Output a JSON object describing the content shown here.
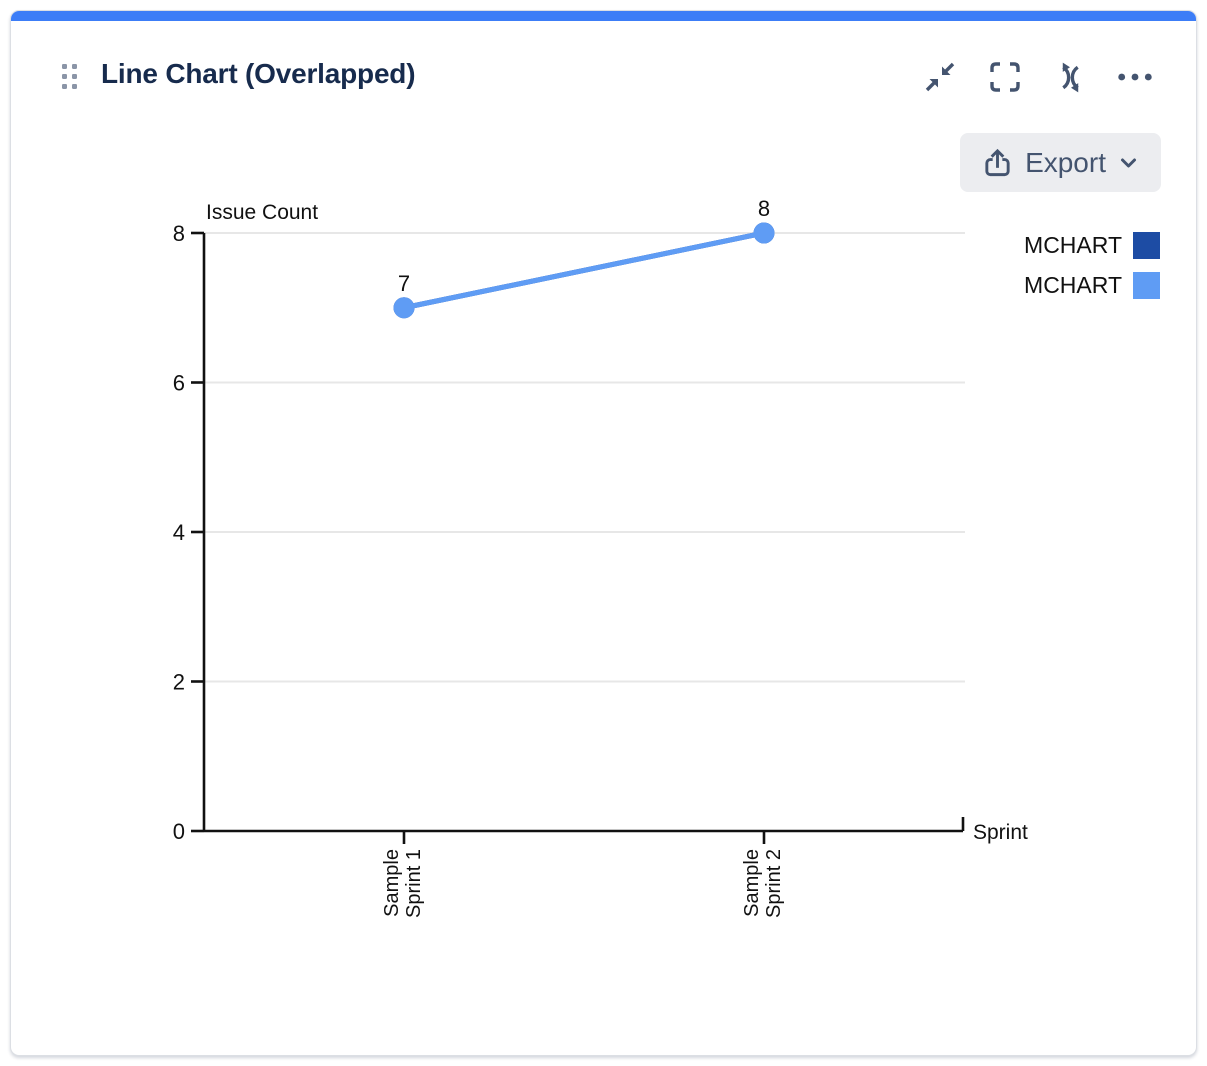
{
  "widget": {
    "title": "Line Chart (Overlapped)",
    "toolbar_icons": [
      "collapse",
      "fullscreen",
      "refresh",
      "more"
    ],
    "export_label": "Export"
  },
  "legend": {
    "position": "right",
    "entries": [
      {
        "label": "MCHART",
        "color": "#1D4CA4"
      },
      {
        "label": "MCHART",
        "color": "#5F9CF4"
      }
    ]
  },
  "chart_data": {
    "type": "line",
    "title": "",
    "categories": [
      "Sample Sprint 1",
      "Sample Sprint 2"
    ],
    "series": [
      {
        "name": "MCHART",
        "color": "#1D4CA4",
        "values": [
          7,
          8
        ]
      },
      {
        "name": "MCHART",
        "color": "#5F9CF4",
        "values": [
          7,
          8
        ]
      }
    ],
    "point_labels": [
      7,
      8
    ],
    "xlabel": "Sprint",
    "ylabel": "Issue Count",
    "ylim": [
      0,
      8
    ],
    "yticks": [
      0,
      2,
      4,
      6,
      8
    ],
    "grid": true,
    "legend_position": "right"
  },
  "colors": {
    "accent_bar": "#3C7DF7",
    "title": "#172B4D",
    "icon": "#44546F",
    "axis": "#111111",
    "gridline": "#E7E7E7",
    "export_bg": "#ECEDF0"
  }
}
